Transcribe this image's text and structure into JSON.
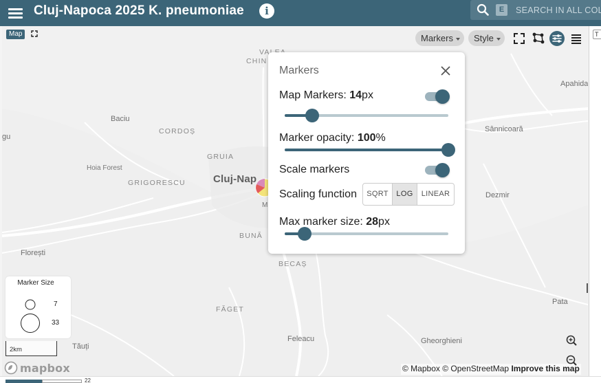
{
  "header": {
    "title": "Cluj-Napoca 2025 K. pneumoniae",
    "search_key": "E",
    "search_placeholder": "SEARCH IN ALL COLUMNS"
  },
  "map": {
    "tag": "Map",
    "labels": {
      "valea": "VALEA",
      "chin": "CHIN",
      "apahida": "Apahida",
      "baciu": "Baciu",
      "cordos": "CORDOȘ",
      "sannicoara": "Sânnicoară",
      "gu": "gu",
      "gruia": "GRUIA",
      "hoia": "Hoia Forest",
      "grigorescu": "GRIGORESCU",
      "city": "Cluj-Nap",
      "m": "M",
      "dezmir": "Dezmir",
      "floresti": "Florești",
      "buna": "BUNĂ",
      "becas": "BECAȘ",
      "pata": "Pata",
      "faget": "FĂGET",
      "feleacu": "Feleacu",
      "gheorghieni": "Gheorghieni",
      "tauti": "Tăuți"
    },
    "size_legend": {
      "title": "Marker Size",
      "values": [
        "7",
        "33"
      ]
    },
    "scale": "2km",
    "logo_text": "mapbox",
    "attribution": {
      "mapbox": "© Mapbox",
      "osm": "© OpenStreetMap",
      "improve": "Improve this map"
    },
    "right_tab": "T",
    "bottom_num": "22"
  },
  "toolbar": {
    "markers_label": "Markers",
    "style_label": "Style"
  },
  "markers_panel": {
    "title": "Markers",
    "map_markers_label": "Map Markers: ",
    "map_markers_value": "14",
    "map_markers_unit": "px",
    "map_markers_slider": 0.17,
    "opacity_label": "Marker opacity: ",
    "opacity_value": "100",
    "opacity_unit": "%",
    "opacity_slider": 1.0,
    "scale_label": "Scale markers",
    "scaling_label": "Scaling function",
    "scaling_options": [
      "SQRT",
      "LOG",
      "LINEAR"
    ],
    "scaling_selected": "LOG",
    "max_size_label": "Max marker size: ",
    "max_size_value": "28",
    "max_size_unit": "px",
    "max_size_slider": 0.12,
    "toggles_on": true
  },
  "colors": {
    "accent": "#3c6578",
    "track": "#9db3bd"
  }
}
